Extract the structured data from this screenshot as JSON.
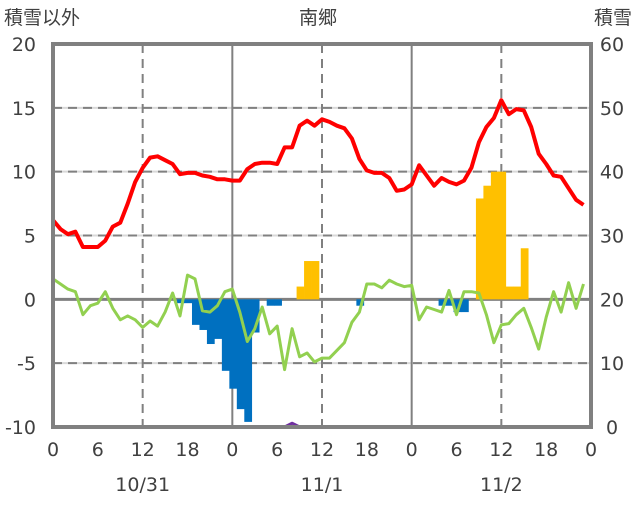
{
  "chart_data": {
    "type": "line",
    "title": "南郷",
    "left_axis_label": "積雪以外",
    "right_axis_label": "積雪",
    "ylim_left": [
      -10,
      20
    ],
    "ylim_right": [
      0,
      60
    ],
    "yticks_left": [
      20,
      15,
      10,
      5,
      0,
      -5,
      -10
    ],
    "yticks_right": [
      60,
      50,
      40,
      30,
      20,
      10,
      0
    ],
    "xlim_hours": [
      0,
      72
    ],
    "xtick_labels": [
      "0",
      "6",
      "12",
      "18",
      "0",
      "6",
      "12",
      "18",
      "0",
      "6",
      "12",
      "18",
      "0"
    ],
    "date_labels": [
      {
        "hour": 12,
        "label": "10/31"
      },
      {
        "hour": 36,
        "label": "11/1"
      },
      {
        "hour": 60,
        "label": "11/2"
      }
    ],
    "grid": true,
    "series": [
      {
        "name": "red-line",
        "axis": "left",
        "kind": "line",
        "color": "#ff0000",
        "values": [
          6.2,
          5.5,
          5.1,
          5.3,
          4.1,
          4.1,
          4.1,
          4.6,
          5.7,
          6.0,
          7.5,
          9.2,
          10.3,
          11.1,
          11.2,
          10.9,
          10.6,
          9.8,
          9.9,
          9.9,
          9.7,
          9.6,
          9.4,
          9.4,
          9.3,
          9.3,
          10.2,
          10.6,
          10.7,
          10.7,
          10.6,
          11.9,
          11.9,
          13.6,
          14.0,
          13.6,
          14.1,
          13.9,
          13.6,
          13.4,
          12.6,
          11.0,
          10.1,
          9.9,
          9.9,
          9.5,
          8.5,
          8.6,
          9.0,
          10.5,
          9.7,
          8.9,
          9.5,
          9.2,
          9.0,
          9.3,
          10.3,
          12.3,
          13.5,
          14.2,
          15.6,
          14.5,
          14.9,
          14.8,
          13.5,
          11.4,
          10.6,
          9.7,
          9.6,
          8.7,
          7.8,
          7.4
        ]
      },
      {
        "name": "green-line",
        "axis": "left",
        "kind": "line",
        "color": "#92d050",
        "values": [
          1.6,
          1.2,
          0.8,
          0.6,
          -1.2,
          -0.5,
          -0.3,
          0.6,
          -0.7,
          -1.6,
          -1.3,
          -1.6,
          -2.2,
          -1.7,
          -2.1,
          -1.0,
          0.5,
          -1.3,
          1.9,
          1.6,
          -0.9,
          -1.0,
          -0.5,
          0.6,
          0.8,
          -1.0,
          -3.3,
          -2.3,
          -0.6,
          -2.7,
          -2.1,
          -5.5,
          -2.3,
          -4.5,
          -4.2,
          -4.9,
          -4.6,
          -4.6,
          -4.0,
          -3.4,
          -1.8,
          -1.0,
          1.2,
          1.2,
          0.9,
          1.5,
          1.2,
          1.0,
          1.1,
          -1.6,
          -0.6,
          -0.8,
          -1.0,
          0.7,
          -1.2,
          0.6,
          0.6,
          0.5,
          -1.2,
          -3.4,
          -2.0,
          -1.9,
          -1.2,
          -0.7,
          -2.2,
          -3.9,
          -1.4,
          0.6,
          -1.0,
          1.3,
          -0.7,
          1.2
        ]
      },
      {
        "name": "blue-bars",
        "axis": "left",
        "kind": "bar",
        "color": "#0070c0",
        "points": [
          [
            17,
            -0.3
          ],
          [
            18,
            -0.3
          ],
          [
            19,
            -2.0
          ],
          [
            20,
            -2.4
          ],
          [
            21,
            -3.5
          ],
          [
            22,
            -3.1
          ],
          [
            23,
            -5.6
          ],
          [
            24,
            -7.0
          ],
          [
            25,
            -8.6
          ],
          [
            26,
            -9.6
          ],
          [
            27,
            -2.6
          ],
          [
            29,
            -0.5
          ],
          [
            30,
            -0.5
          ],
          [
            41,
            -0.5
          ],
          [
            52,
            -0.5
          ],
          [
            53,
            -0.5
          ],
          [
            54,
            -1.0
          ],
          [
            55,
            -1.0
          ]
        ]
      },
      {
        "name": "yellow-bars",
        "axis": "left",
        "kind": "bar",
        "color": "#ffc000",
        "points": [
          [
            33,
            1.0
          ],
          [
            34,
            3.0
          ],
          [
            35,
            3.0
          ],
          [
            57,
            7.9
          ],
          [
            58,
            8.9
          ],
          [
            59,
            10.0
          ],
          [
            60,
            10.0
          ],
          [
            61,
            1.0
          ],
          [
            62,
            1.0
          ],
          [
            63,
            4.0
          ]
        ]
      },
      {
        "name": "purple-line",
        "axis": "right",
        "kind": "line",
        "color": "#7030a0",
        "points": [
          [
            11,
            0
          ],
          [
            31,
            0
          ],
          [
            32,
            0.6
          ],
          [
            33,
            0
          ],
          [
            72,
            0
          ]
        ]
      }
    ]
  }
}
